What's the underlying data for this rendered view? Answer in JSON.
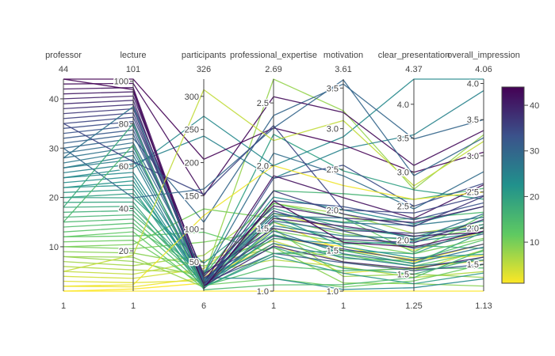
{
  "chart_data": {
    "type": "parallel_coordinates",
    "dimensions": [
      {
        "label": "professor",
        "range": [
          1,
          44
        ],
        "range_labels": [
          "1",
          "44"
        ],
        "ticks": [
          10,
          20,
          30,
          40
        ]
      },
      {
        "label": "lecture",
        "range": [
          1,
          101
        ],
        "range_labels": [
          "1",
          "101"
        ],
        "ticks": [
          20,
          40,
          60,
          80,
          100
        ]
      },
      {
        "label": "participants",
        "range": [
          6,
          326
        ],
        "range_labels": [
          "6",
          "326"
        ],
        "ticks": [
          50,
          100,
          150,
          200,
          250,
          300
        ]
      },
      {
        "label": "professional_expertise",
        "range": [
          1,
          2.69
        ],
        "range_labels": [
          "1",
          "2.69"
        ],
        "ticks": [
          1.0,
          1.5,
          2.0,
          2.5
        ]
      },
      {
        "label": "motivation",
        "range": [
          1,
          3.61
        ],
        "range_labels": [
          "1",
          "3.61"
        ],
        "ticks": [
          1.0,
          1.5,
          2.0,
          2.5,
          3.0,
          3.5
        ]
      },
      {
        "label": "clear_presentation",
        "range": [
          1.25,
          4.37
        ],
        "range_labels": [
          "1.25",
          "4.37"
        ],
        "ticks": [
          1.5,
          2.0,
          2.5,
          3.0,
          3.5,
          4.0
        ]
      },
      {
        "label": "overall_impression",
        "range": [
          1.13,
          4.06
        ],
        "range_labels": [
          "1.13",
          "4.06"
        ],
        "ticks": [
          1.5,
          2.0,
          2.5,
          3.0,
          3.5,
          4.0
        ]
      }
    ],
    "colorscale": "Viridis (reversed)",
    "colorscale_stops": [
      "#fde725",
      "#5ec962",
      "#21918c",
      "#3b528b",
      "#440154"
    ],
    "color_dimension": "professor",
    "colorbar": {
      "min": 1,
      "max": 44,
      "ticks": [
        10,
        20,
        30,
        40
      ]
    },
    "series": [
      [
        1,
        1,
        6,
        1.0,
        1.0,
        1.25,
        1.13
      ],
      [
        1,
        2,
        18,
        1.42,
        1.55,
        1.68,
        1.78
      ],
      [
        2,
        3,
        26,
        1.55,
        1.5,
        1.72,
        1.62
      ],
      [
        3,
        5,
        22,
        1.38,
        1.22,
        1.6,
        1.55
      ],
      [
        4,
        7,
        40,
        1.62,
        1.75,
        1.85,
        1.95
      ],
      [
        5,
        9,
        52,
        1.4,
        1.36,
        1.55,
        1.7
      ],
      [
        6,
        11,
        34,
        1.25,
        1.3,
        1.45,
        1.4
      ],
      [
        7,
        13,
        60,
        1.7,
        1.95,
        2.1,
        2.05
      ],
      [
        8,
        15,
        28,
        2.69,
        3.22,
        2.75,
        3.29
      ],
      [
        8,
        17,
        12,
        1.5,
        1.18,
        1.5,
        1.32
      ],
      [
        9,
        19,
        44,
        1.35,
        1.1,
        1.36,
        1.2
      ],
      [
        10,
        21,
        80,
        1.48,
        1.6,
        1.8,
        1.86
      ],
      [
        10,
        23,
        130,
        1.58,
        1.7,
        2.0,
        2.0
      ],
      [
        11,
        25,
        15,
        1.1,
        1.05,
        1.4,
        1.5
      ],
      [
        12,
        27,
        95,
        1.3,
        1.45,
        1.62,
        1.68
      ],
      [
        12,
        29,
        10,
        1.7,
        1.9,
        1.82,
        2.18
      ],
      [
        13,
        31,
        36,
        1.45,
        1.4,
        1.7,
        1.84
      ],
      [
        14,
        33,
        14,
        1.2,
        1.25,
        1.58,
        1.45
      ],
      [
        15,
        35,
        20,
        1.62,
        1.85,
        2.32,
        2.22
      ],
      [
        16,
        37,
        30,
        1.8,
        2.2,
        2.6,
        2.55
      ],
      [
        17,
        39,
        18,
        1.55,
        1.62,
        1.92,
        1.72
      ],
      [
        18,
        41,
        25,
        1.35,
        1.28,
        1.5,
        1.6
      ],
      [
        19,
        43,
        10,
        1.45,
        1.5,
        1.8,
        2.02
      ],
      [
        20,
        45,
        48,
        1.66,
        1.78,
        2.05,
        2.1
      ],
      [
        20,
        47,
        32,
        2.25,
        2.48,
        2.74,
        2.4
      ],
      [
        21,
        49,
        12,
        1.28,
        1.22,
        1.36,
        1.38
      ],
      [
        22,
        51,
        22,
        1.42,
        1.58,
        1.98,
        1.94
      ],
      [
        22,
        53,
        14,
        1.6,
        1.55,
        1.74,
        1.64
      ],
      [
        23,
        55,
        16,
        1.75,
        2.0,
        2.24,
        2.3
      ],
      [
        24,
        57,
        26,
        1.1,
        1.02,
        1.3,
        1.3
      ],
      [
        24,
        59,
        270,
        2.0,
        2.9,
        4.37,
        4.06
      ],
      [
        25,
        61,
        240,
        1.9,
        2.75,
        3.55,
        3.9
      ],
      [
        26,
        63,
        10,
        1.52,
        1.68,
        2.02,
        2.05
      ],
      [
        26,
        65,
        18,
        1.38,
        1.42,
        1.62,
        1.56
      ],
      [
        27,
        67,
        22,
        1.62,
        1.84,
        2.22,
        2.15
      ],
      [
        28,
        69,
        14,
        1.48,
        1.46,
        1.66,
        1.74
      ],
      [
        29,
        71,
        30,
        2.1,
        2.42,
        2.46,
        2.78
      ],
      [
        30,
        73,
        110,
        2.4,
        3.55,
        3.49,
        3.5
      ],
      [
        31,
        75,
        24,
        1.56,
        1.74,
        1.88,
        1.92
      ],
      [
        32,
        77,
        18,
        1.3,
        1.35,
        1.55,
        1.5
      ],
      [
        33,
        79,
        12,
        1.72,
        2.04,
        2.3,
        2.35
      ],
      [
        34,
        81,
        10,
        1.9,
        2.55,
        2.5,
        2.62
      ],
      [
        35,
        83,
        26,
        1.44,
        1.52,
        1.7,
        1.78
      ],
      [
        36,
        85,
        20,
        1.64,
        1.75,
        2.1,
        2.0
      ],
      [
        37,
        87,
        15,
        1.8,
        1.95,
        2.2,
        2.44
      ],
      [
        38,
        89,
        32,
        1.5,
        1.64,
        1.96,
        2.12
      ],
      [
        39,
        91,
        14,
        1.36,
        1.36,
        1.58,
        1.6
      ],
      [
        40,
        93,
        28,
        1.68,
        1.9,
        2.26,
        2.3
      ],
      [
        41,
        95,
        12,
        1.58,
        1.8,
        2.06,
        1.94
      ],
      [
        42,
        97,
        18,
        1.92,
        2.15,
        2.32,
        2.6
      ],
      [
        43,
        99,
        150,
        2.55,
        3.2,
        3.1,
        3.35
      ],
      [
        44,
        101,
        205,
        2.3,
        2.8,
        3.0,
        3.05
      ],
      [
        44,
        96,
        10,
        1.72,
        1.6,
        1.9,
        1.96
      ],
      [
        30,
        45,
        160,
        2.3,
        3.6,
        2.95,
        3.25
      ],
      [
        35,
        62,
        152,
        2.32,
        2.0,
        2.4,
        2.45
      ],
      [
        5,
        18,
        310,
        2.2,
        3.1,
        2.8,
        3.2
      ],
      [
        2,
        4,
        120,
        2.0,
        2.3,
        2.6,
        2.5
      ],
      [
        15,
        70,
        8,
        1.05,
        1.08,
        1.45,
        1.7
      ],
      [
        18,
        80,
        12,
        1.3,
        1.5,
        1.65,
        1.95
      ],
      [
        28,
        88,
        20,
        1.6,
        1.9,
        2.0,
        2.2
      ]
    ]
  }
}
